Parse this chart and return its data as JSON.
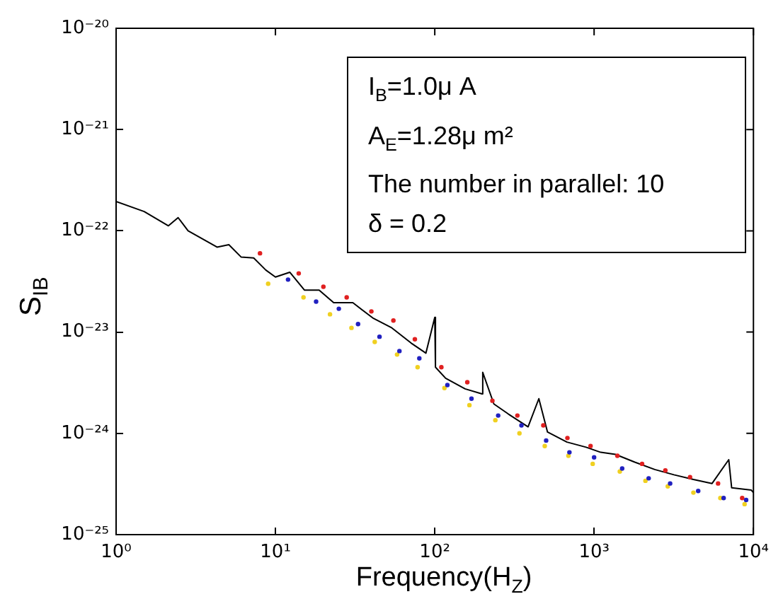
{
  "chart_data": {
    "type": "line",
    "xlabel": "Frequency(H$_{Z}$)",
    "ylabel": "S$_{IB}$",
    "log": "xy",
    "grid": false,
    "legend": false,
    "line_style": "solid",
    "xlim": [
      1,
      10000
    ],
    "xticks": [
      {
        "value": 1,
        "label": "10⁰"
      },
      {
        "value": 10,
        "label": "10¹"
      },
      {
        "value": 100,
        "label": "10²"
      },
      {
        "value": 1000,
        "label": "10³"
      },
      {
        "value": 10000,
        "label": "10⁴"
      }
    ],
    "ylim": [
      1e-25,
      1e-20
    ],
    "yticks": [
      {
        "value": 1e-25,
        "label": "10⁻²⁵"
      },
      {
        "value": 1e-24,
        "label": "10⁻²⁴"
      },
      {
        "value": 1e-23,
        "label": "10⁻²³"
      },
      {
        "value": 1e-22,
        "label": "10⁻²²"
      },
      {
        "value": 1e-21,
        "label": "10⁻²¹"
      },
      {
        "value": 1e-20,
        "label": "10⁻²⁰"
      }
    ],
    "annotations": [
      "I$_{B}$=1.0μ A",
      "A$_{E}$=1.28μ m²",
      "The number in parallel: 10",
      "δ = 0.2"
    ],
    "series": [
      {
        "type": "scatter",
        "marker": "circle",
        "color": "#2020c0",
        "x": [
          12,
          18,
          25,
          33,
          45,
          60,
          80,
          120,
          170,
          250,
          350,
          500,
          700,
          1000,
          1500,
          2200,
          3000,
          4500,
          6500,
          9000
        ],
        "values": [
          3.3e-23,
          2e-23,
          1.7e-23,
          1.2e-23,
          9e-24,
          6.5e-24,
          5.5e-24,
          3e-24,
          2.2e-24,
          1.5e-24,
          1.2e-24,
          8.5e-25,
          6.5e-25,
          5.8e-25,
          4.5e-25,
          3.6e-25,
          3.2e-25,
          2.7e-25,
          2.3e-25,
          2.2e-25
        ]
      },
      {
        "type": "scatter",
        "marker": "circle",
        "color": "#e02020",
        "x": [
          8,
          14,
          20,
          28,
          40,
          55,
          75,
          110,
          160,
          230,
          330,
          480,
          680,
          950,
          1400,
          2000,
          2800,
          4000,
          6000,
          8500
        ],
        "values": [
          6e-23,
          3.8e-23,
          2.8e-23,
          2.2e-23,
          1.6e-23,
          1.3e-23,
          8.5e-24,
          4.5e-24,
          3.2e-24,
          2.1e-24,
          1.5e-24,
          1.2e-24,
          9e-25,
          7.5e-25,
          6e-25,
          5e-25,
          4.3e-25,
          3.7e-25,
          3.2e-25,
          2.3e-25
        ]
      },
      {
        "type": "scatter",
        "marker": "circle",
        "color": "#f0d020",
        "x": [
          9,
          15,
          22,
          30,
          42,
          58,
          78,
          115,
          165,
          240,
          340,
          490,
          690,
          980,
          1450,
          2100,
          2900,
          4200,
          6200,
          8800
        ],
        "values": [
          3e-23,
          2.2e-23,
          1.5e-23,
          1.1e-23,
          8e-24,
          6e-24,
          4.5e-24,
          2.8e-24,
          1.9e-24,
          1.35e-24,
          1e-24,
          7.5e-25,
          6e-25,
          5e-25,
          4.2e-25,
          3.4e-25,
          3e-25,
          2.6e-25,
          2.3e-25,
          2e-25
        ]
      },
      {
        "marker": "none",
        "color": "#000000",
        "x": [
          1,
          1.5,
          2.13,
          2.45,
          2.83,
          4.3,
          5.1,
          6.1,
          7.3,
          8.7,
          10,
          12.3,
          15.2,
          18.8,
          23.2,
          30.6,
          40.8,
          53.8,
          71,
          88,
          100,
          101,
          117,
          155,
          198,
          200,
          235,
          290,
          385,
          450,
          510,
          675,
          890,
          1100,
          1360,
          1800,
          2400,
          3170,
          4200,
          5500,
          7000,
          7300,
          9700,
          10000
        ],
        "values": [
          1.95e-22,
          1.55e-22,
          1.12e-22,
          1.35e-22,
          1e-22,
          6.9e-23,
          7.3e-23,
          5.5e-23,
          5.4e-23,
          4.1e-23,
          3.5e-23,
          3.9e-23,
          2.6e-23,
          2.6e-23,
          1.95e-23,
          1.95e-23,
          1.38e-23,
          1.1e-23,
          7.8e-24,
          6.2e-24,
          1.4e-23,
          4.5e-24,
          3.5e-24,
          2.75e-24,
          2.45e-24,
          4e-24,
          1.95e-24,
          1.55e-24,
          1.16e-24,
          2.2e-24,
          1.03e-24,
          8.2e-25,
          7.3e-25,
          6.5e-25,
          6.2e-25,
          5.2e-25,
          4.4e-25,
          3.9e-25,
          3.5e-25,
          3.2e-25,
          5.5e-25,
          2.9e-25,
          2.75e-25,
          2.6e-25
        ]
      }
    ]
  }
}
